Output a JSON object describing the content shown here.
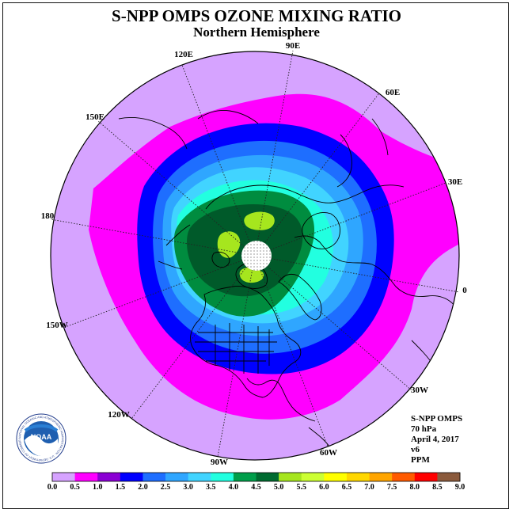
{
  "header": {
    "title": "S-NPP OMPS OZONE MIXING RATIO",
    "subtitle": "Northern Hemisphere"
  },
  "map": {
    "projection": "north-polar-stereographic",
    "longitude_labels": [
      {
        "text": "90E",
        "lon": 90
      },
      {
        "text": "60E",
        "lon": 60
      },
      {
        "text": "30E",
        "lon": 30
      },
      {
        "text": "0",
        "lon": 0
      },
      {
        "text": "30W",
        "lon": -30
      },
      {
        "text": "60W",
        "lon": -60
      },
      {
        "text": "90W",
        "lon": -90
      },
      {
        "text": "120W",
        "lon": -120
      },
      {
        "text": "150W",
        "lon": -150
      },
      {
        "text": "180",
        "lon": 180
      },
      {
        "text": "150E",
        "lon": 150
      },
      {
        "text": "120E",
        "lon": 120
      }
    ],
    "colors": {
      "lavender": "#D6A3FF",
      "magenta": "#FF00FF",
      "blue": "#0000FF",
      "mid_blue": "#1E6EFF",
      "sky_blue": "#2FA6FF",
      "light_blue": "#41D4FF",
      "cyan": "#22FFE0",
      "green": "#008C3F",
      "dark_green": "#005A2A",
      "yellow_green": "#A6E61E",
      "coast": "#000000",
      "grid": "#222222"
    }
  },
  "info_block": {
    "instrument": "S-NPP OMPS",
    "level": "70 hPa",
    "date": "April 4, 2017",
    "version": "v6",
    "units": "PPM"
  },
  "colorbar": {
    "labels": [
      "0.0",
      "0.5",
      "1.0",
      "1.5",
      "2.0",
      "2.5",
      "3.0",
      "3.5",
      "4.0",
      "4.5",
      "5.0",
      "5.5",
      "6.0",
      "6.5",
      "7.0",
      "7.5",
      "8.0",
      "8.5",
      "9.0"
    ],
    "colors": [
      "#B36EFF",
      "#D6A3FF",
      "#FF00FF",
      "#8B00D4",
      "#0000FF",
      "#1E6EFF",
      "#2FA6FF",
      "#41D4FF",
      "#22FFE0",
      "#009E4A",
      "#006B30",
      "#A6E61E",
      "#CCFF33",
      "#FFFF00",
      "#FFD700",
      "#FFA500",
      "#FF5A00",
      "#FF0000",
      "#8B5A3C"
    ]
  },
  "logo": {
    "text": "NOAA",
    "ring_text": "NATIONAL OCEANIC AND ATMOSPHERIC ADMINISTRATION · U.S. DEPARTMENT OF COMMERCE"
  }
}
